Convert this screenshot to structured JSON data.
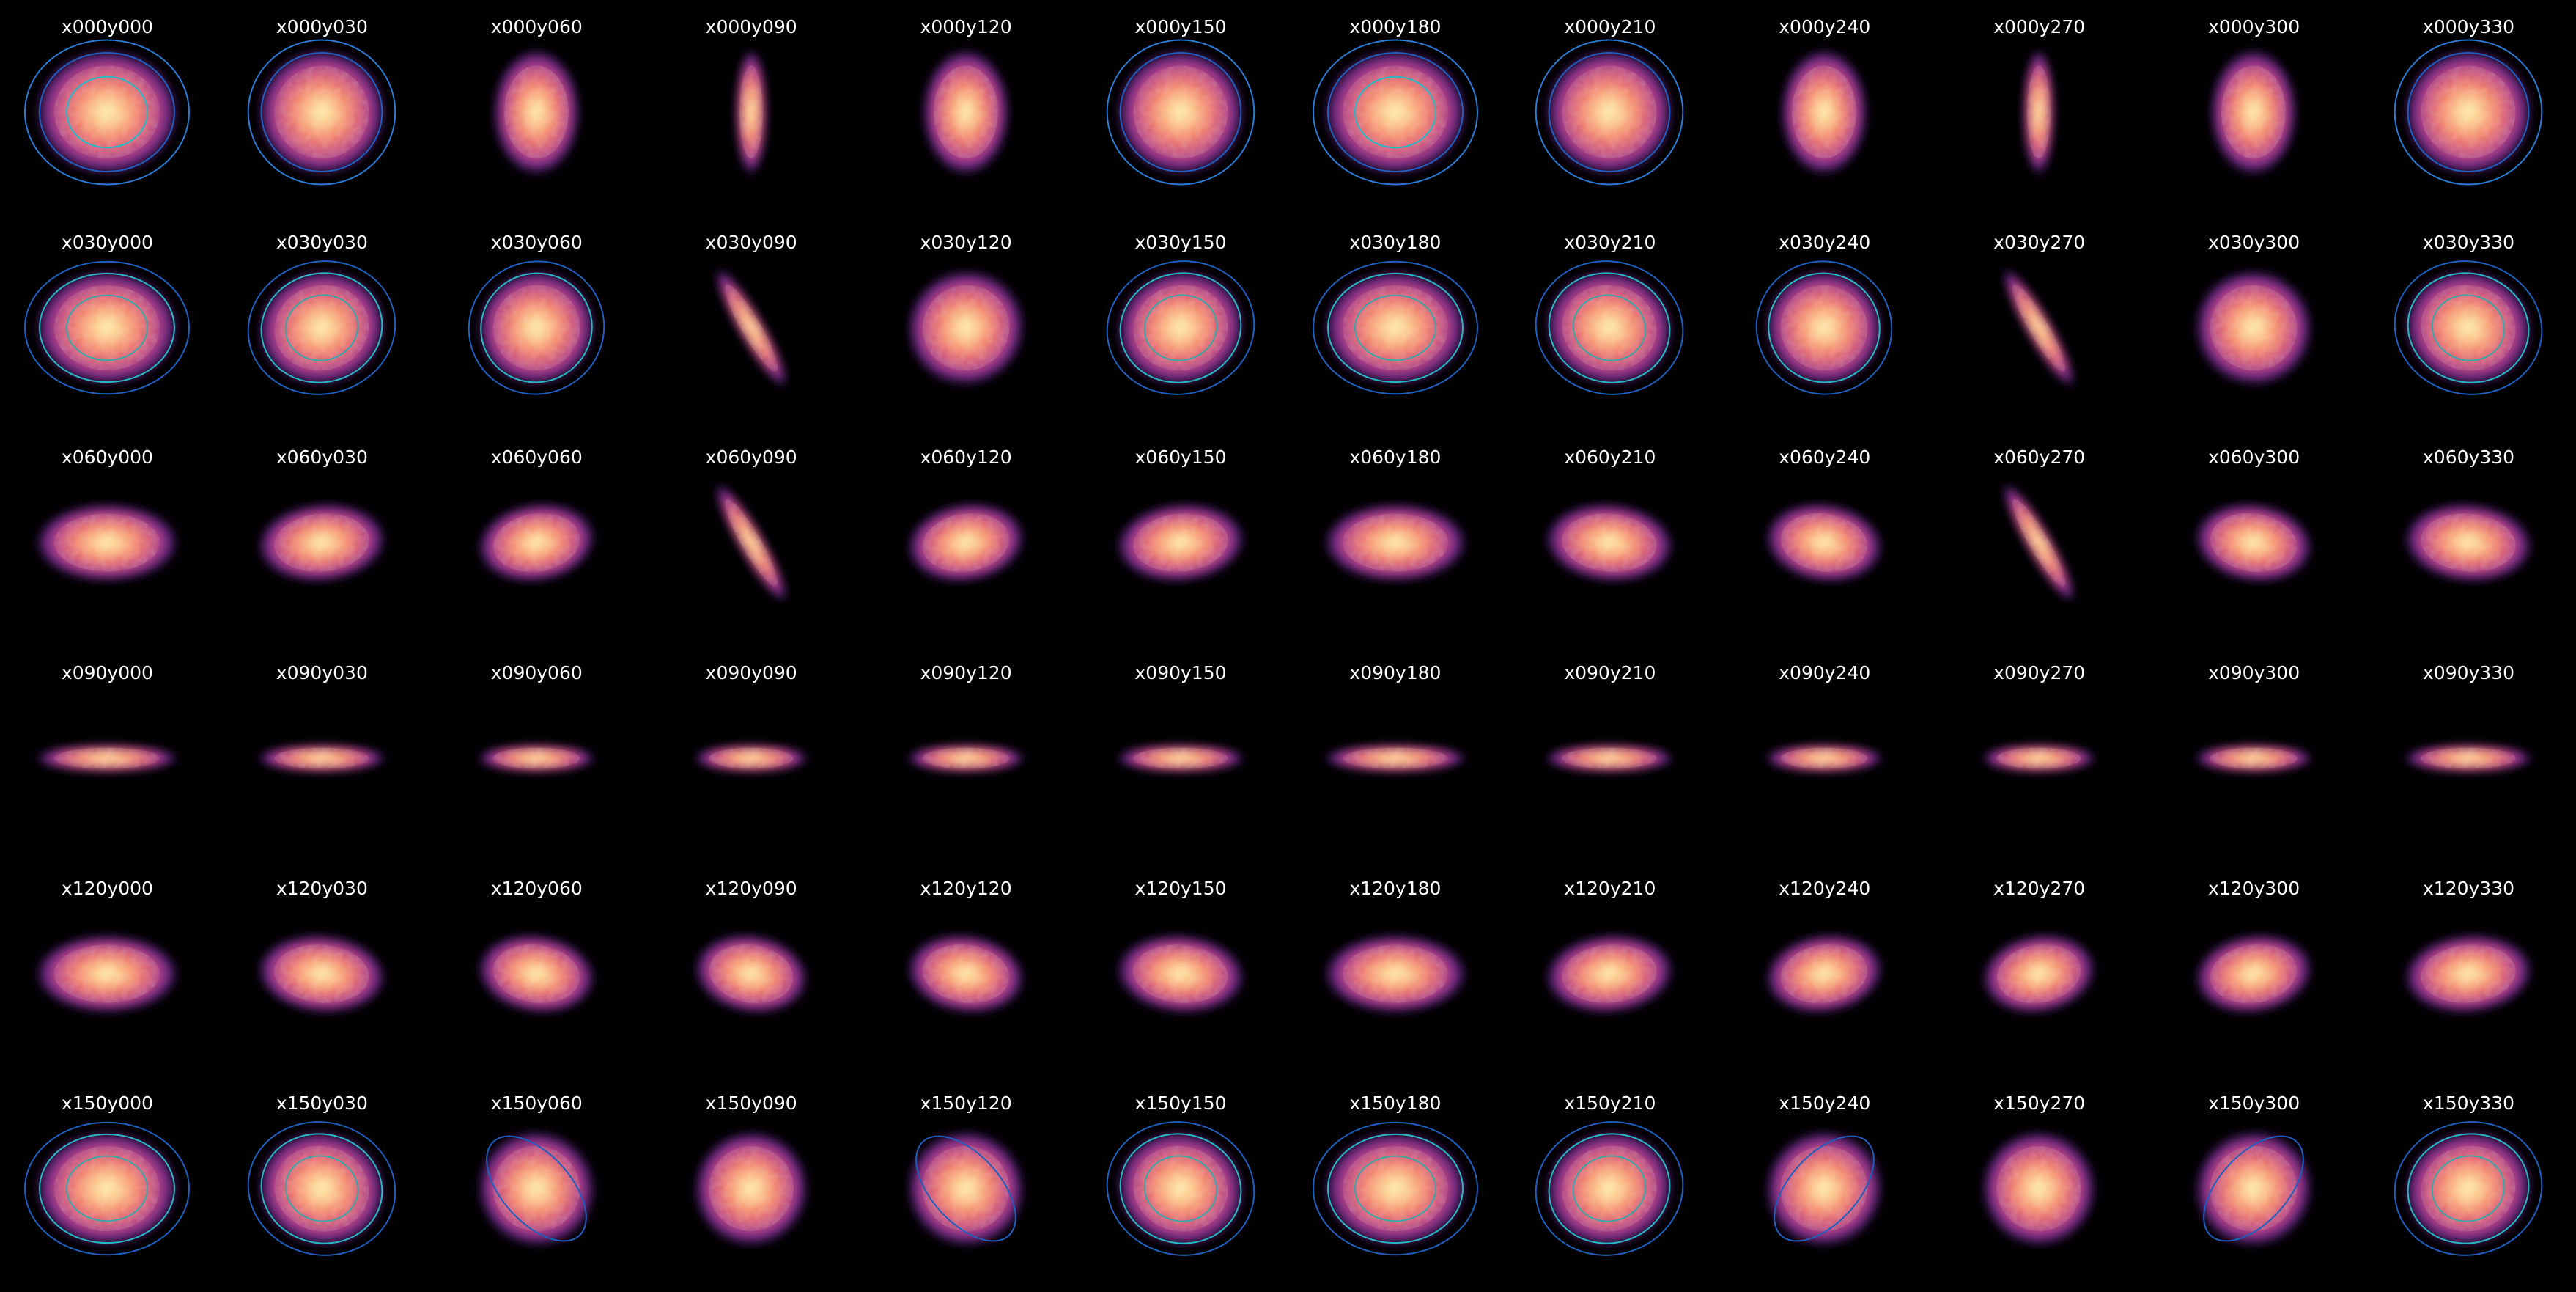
{
  "figure": {
    "background": "#000000",
    "title_color": "#ffffff",
    "contour_colors": [
      "#2b7bd6",
      "#1f5fbf",
      "#27b8c6",
      "#3aa6a6"
    ]
  },
  "panels": [
    [
      {
        "label": "x000y000",
        "ellipses": 3
      },
      {
        "label": "x000y030",
        "ellipses": 2
      },
      {
        "label": "x000y060",
        "ellipses": 0
      },
      {
        "label": "x000y090",
        "ellipses": 0
      },
      {
        "label": "x000y120",
        "ellipses": 0
      },
      {
        "label": "x000y150",
        "ellipses": 2
      },
      {
        "label": "x000y180",
        "ellipses": 3
      },
      {
        "label": "x000y210",
        "ellipses": 2
      },
      {
        "label": "x000y240",
        "ellipses": 0
      },
      {
        "label": "x000y270",
        "ellipses": 0
      },
      {
        "label": "x000y300",
        "ellipses": 0
      },
      {
        "label": "x000y330",
        "ellipses": 2
      }
    ],
    [
      {
        "label": "x030y000",
        "ellipses": 3
      },
      {
        "label": "x030y030",
        "ellipses": 3
      },
      {
        "label": "x030y060",
        "ellipses": 2
      },
      {
        "label": "x030y090",
        "ellipses": 0
      },
      {
        "label": "x030y120",
        "ellipses": 0
      },
      {
        "label": "x030y150",
        "ellipses": 3
      },
      {
        "label": "x030y180",
        "ellipses": 3
      },
      {
        "label": "x030y210",
        "ellipses": 3
      },
      {
        "label": "x030y240",
        "ellipses": 2
      },
      {
        "label": "x030y270",
        "ellipses": 0
      },
      {
        "label": "x030y300",
        "ellipses": 0
      },
      {
        "label": "x030y330",
        "ellipses": 3
      }
    ],
    [
      {
        "label": "x060y000",
        "ellipses": 0
      },
      {
        "label": "x060y030",
        "ellipses": 0
      },
      {
        "label": "x060y060",
        "ellipses": 0
      },
      {
        "label": "x060y090",
        "ellipses": 0
      },
      {
        "label": "x060y120",
        "ellipses": 0
      },
      {
        "label": "x060y150",
        "ellipses": 0
      },
      {
        "label": "x060y180",
        "ellipses": 0
      },
      {
        "label": "x060y210",
        "ellipses": 0
      },
      {
        "label": "x060y240",
        "ellipses": 0
      },
      {
        "label": "x060y270",
        "ellipses": 0
      },
      {
        "label": "x060y300",
        "ellipses": 0
      },
      {
        "label": "x060y330",
        "ellipses": 0
      }
    ],
    [
      {
        "label": "x090y000",
        "ellipses": 0
      },
      {
        "label": "x090y030",
        "ellipses": 0
      },
      {
        "label": "x090y060",
        "ellipses": 0
      },
      {
        "label": "x090y090",
        "ellipses": 0
      },
      {
        "label": "x090y120",
        "ellipses": 0
      },
      {
        "label": "x090y150",
        "ellipses": 0
      },
      {
        "label": "x090y180",
        "ellipses": 0
      },
      {
        "label": "x090y210",
        "ellipses": 0
      },
      {
        "label": "x090y240",
        "ellipses": 0
      },
      {
        "label": "x090y270",
        "ellipses": 0
      },
      {
        "label": "x090y300",
        "ellipses": 0
      },
      {
        "label": "x090y330",
        "ellipses": 0
      }
    ],
    [
      {
        "label": "x120y000",
        "ellipses": 0
      },
      {
        "label": "x120y030",
        "ellipses": 0
      },
      {
        "label": "x120y060",
        "ellipses": 0
      },
      {
        "label": "x120y090",
        "ellipses": 0
      },
      {
        "label": "x120y120",
        "ellipses": 0
      },
      {
        "label": "x120y150",
        "ellipses": 0
      },
      {
        "label": "x120y180",
        "ellipses": 0
      },
      {
        "label": "x120y210",
        "ellipses": 0
      },
      {
        "label": "x120y240",
        "ellipses": 0
      },
      {
        "label": "x120y270",
        "ellipses": 0
      },
      {
        "label": "x120y300",
        "ellipses": 0
      },
      {
        "label": "x120y330",
        "ellipses": 0
      }
    ],
    [
      {
        "label": "x150y000",
        "ellipses": 3
      },
      {
        "label": "x150y030",
        "ellipses": 3
      },
      {
        "label": "x150y060",
        "ellipses": 1
      },
      {
        "label": "x150y090",
        "ellipses": 0
      },
      {
        "label": "x150y120",
        "ellipses": 1
      },
      {
        "label": "x150y150",
        "ellipses": 3
      },
      {
        "label": "x150y180",
        "ellipses": 3
      },
      {
        "label": "x150y210",
        "ellipses": 3
      },
      {
        "label": "x150y240",
        "ellipses": 1
      },
      {
        "label": "x150y270",
        "ellipses": 0
      },
      {
        "label": "x150y300",
        "ellipses": 1
      },
      {
        "label": "x150y330",
        "ellipses": 3
      }
    ]
  ]
}
